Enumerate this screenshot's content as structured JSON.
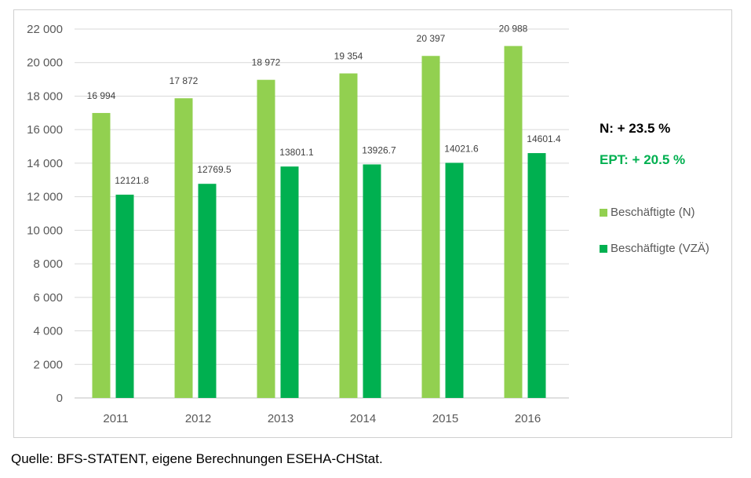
{
  "chart_data": {
    "type": "bar",
    "categories": [
      "2011",
      "2012",
      "2013",
      "2014",
      "2015",
      "2016"
    ],
    "series": [
      {
        "name": "Beschäftigte (N)",
        "color": "#92D050",
        "values": [
          16994,
          17872,
          18972,
          19354,
          20397,
          20988
        ],
        "labels": [
          "16 994",
          "17 872",
          "18 972",
          "19 354",
          "20 397",
          "20 988"
        ]
      },
      {
        "name": "Beschäftigte (VZÄ)",
        "color": "#00B050",
        "values": [
          12121.8,
          12769.5,
          13801.1,
          13926.7,
          14021.6,
          14601.4
        ],
        "labels": [
          "12121.8",
          "12769.5",
          "13801.1",
          "13926.7",
          "14021.6",
          "14601.4"
        ]
      }
    ],
    "ylim": [
      0,
      22000
    ],
    "yticks": [
      0,
      2000,
      4000,
      6000,
      8000,
      10000,
      12000,
      14000,
      16000,
      18000,
      20000,
      22000
    ],
    "ytick_labels": [
      "0",
      "2 000",
      "4 000",
      "6 000",
      "8 000",
      "10 000",
      "12 000",
      "14 000",
      "16 000",
      "18 000",
      "20 000",
      "22 000"
    ],
    "grid": true,
    "legend": "right",
    "annotations": [
      {
        "text": "N: + 23.5 %",
        "color": "#000000"
      },
      {
        "text": "EPT: + 20.5 %",
        "color": "#00B050"
      }
    ]
  },
  "source": "Quelle: BFS-STATENT, eigene Berechnungen ESEHA-CHStat."
}
